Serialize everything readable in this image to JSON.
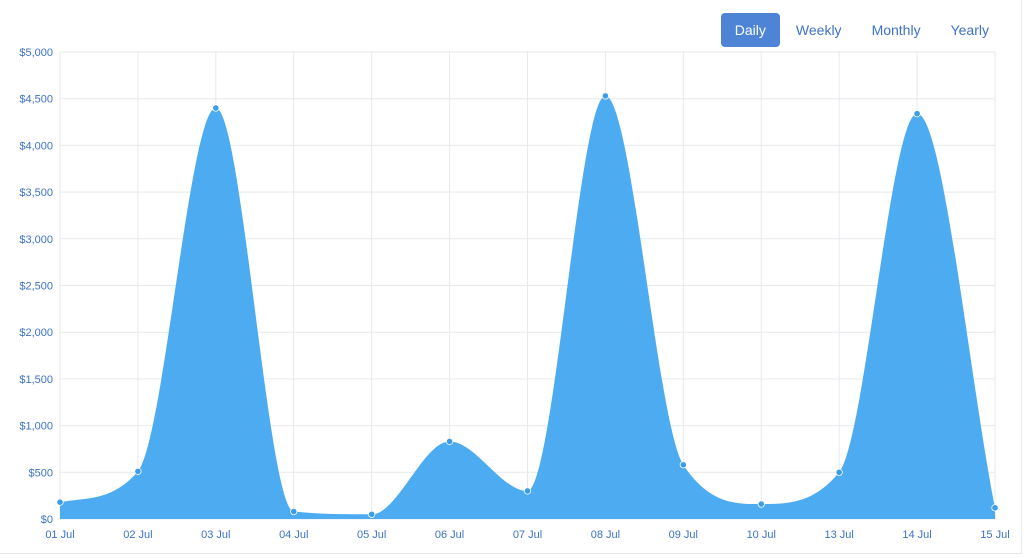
{
  "range_tabs": [
    {
      "label": "Daily",
      "active": true
    },
    {
      "label": "Weekly",
      "active": false
    },
    {
      "label": "Monthly",
      "active": false
    },
    {
      "label": "Yearly",
      "active": false
    }
  ],
  "colors": {
    "area_fill": "#4dabf1",
    "point": "#3b9de9",
    "grid": "#e7e9ed",
    "tick_text": "#3d72c9",
    "active_tab": "#4d84d6"
  },
  "chart_data": {
    "type": "area",
    "x": [
      "01 Jul",
      "02 Jul",
      "03 Jul",
      "04 Jul",
      "05 Jul",
      "06 Jul",
      "07 Jul",
      "08 Jul",
      "09 Jul",
      "10 Jul",
      "13 Jul",
      "14 Jul",
      "15 Jul"
    ],
    "y_tick_labels": [
      "$0",
      "$500",
      "$1,000",
      "$1,500",
      "$2,000",
      "$2,500",
      "$3,000",
      "$3,500",
      "$4,000",
      "$4,500",
      "$5,000"
    ],
    "series": [
      {
        "values": [
          180,
          510,
          4400,
          80,
          50,
          830,
          300,
          4530,
          580,
          160,
          500,
          4340,
          120
        ]
      }
    ],
    "ylim": [
      0,
      5000
    ],
    "grid": true,
    "smooth": true
  }
}
